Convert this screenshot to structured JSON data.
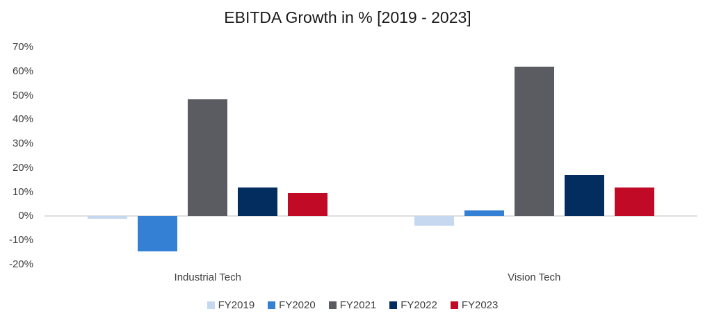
{
  "chart_data": {
    "type": "bar",
    "title": "EBITDA Growth in % [2019 - 2023]",
    "categories": [
      "Industrial Tech",
      "Vision Tech"
    ],
    "series": [
      {
        "name": "FY2019",
        "color": "#C5D8F0",
        "values": [
          -1,
          -4
        ]
      },
      {
        "name": "FY2020",
        "color": "#3480D4",
        "values": [
          -14.5,
          2.5
        ]
      },
      {
        "name": "FY2021",
        "color": "#5A5C61",
        "values": [
          48.5,
          62
        ]
      },
      {
        "name": "FY2022",
        "color": "#032C5F",
        "values": [
          12,
          17
        ]
      },
      {
        "name": "FY2023",
        "color": "#C00A26",
        "values": [
          9.5,
          12
        ]
      }
    ],
    "ylabel": "",
    "xlabel": "",
    "ylim": [
      -20,
      70
    ],
    "y_ticks": [
      {
        "label": "70%",
        "value": 70
      },
      {
        "label": "60%",
        "value": 60
      },
      {
        "label": "50%",
        "value": 50
      },
      {
        "label": "40%",
        "value": 40
      },
      {
        "label": "30%",
        "value": 30
      },
      {
        "label": "20%",
        "value": 20
      },
      {
        "label": "10%",
        "value": 10
      },
      {
        "label": "0%",
        "value": 0
      },
      {
        "label": "-10%",
        "value": -10
      },
      {
        "label": "-20%",
        "value": -20
      }
    ],
    "grid": false,
    "legend_position": "bottom",
    "axis_line_color": "#DFDFDF",
    "text_color": "#3F3F3F",
    "title_color": "#1A1A1A",
    "background_color": "#FFFFFF"
  }
}
